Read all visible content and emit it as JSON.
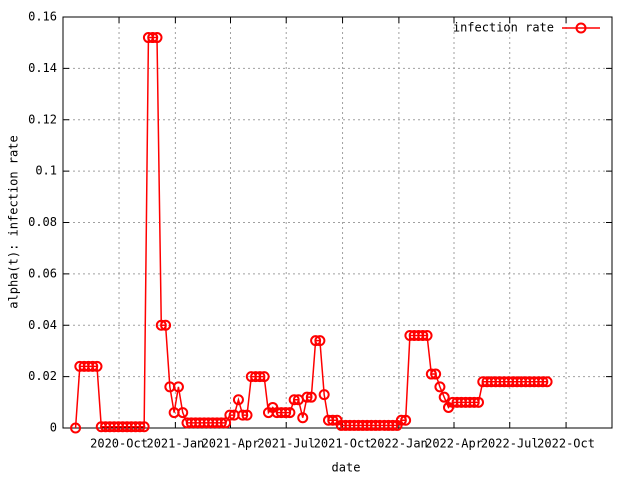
{
  "chart_data": {
    "type": "line",
    "xlabel": "date",
    "ylabel": "alpha(t): infection rate",
    "x": [
      203,
      210,
      217,
      224,
      231,
      238,
      245,
      252,
      259,
      266,
      273,
      280,
      287,
      294,
      301,
      308,
      315,
      322,
      329,
      336,
      343,
      350,
      357,
      364,
      371,
      378,
      385,
      392,
      399,
      406,
      413,
      420,
      427,
      434,
      441,
      448,
      455,
      462,
      469,
      476,
      483,
      490,
      497,
      504,
      511,
      518,
      525,
      532,
      539,
      546,
      553,
      560,
      567,
      574,
      581,
      588,
      595,
      602,
      609,
      616,
      623,
      630,
      637,
      644,
      651,
      658,
      665,
      672,
      679,
      686,
      693,
      700,
      707,
      714,
      721,
      728,
      735,
      742,
      749,
      756,
      763,
      770,
      777,
      784,
      791,
      798,
      805,
      812,
      819,
      826,
      833,
      840,
      847,
      854,
      861,
      868,
      875,
      882,
      889,
      896,
      903,
      910,
      917,
      924,
      931,
      938,
      945,
      952,
      959,
      966,
      973
    ],
    "series": [
      {
        "name": "infection rate",
        "color": "#ff0000",
        "values": [
          0,
          0.024,
          0.024,
          0.024,
          0.024,
          0.024,
          0.0005,
          0.0005,
          0.0005,
          0.0005,
          0.0005,
          0.0005,
          0.0005,
          0.0005,
          0.0005,
          0.0005,
          0.0005,
          0.152,
          0.152,
          0.152,
          0.04,
          0.04,
          0.016,
          0.006,
          0.016,
          0.006,
          0.002,
          0.002,
          0.002,
          0.002,
          0.002,
          0.002,
          0.002,
          0.002,
          0.002,
          0.002,
          0.005,
          0.005,
          0.011,
          0.005,
          0.005,
          0.02,
          0.02,
          0.02,
          0.02,
          0.006,
          0.008,
          0.006,
          0.006,
          0.006,
          0.006,
          0.011,
          0.011,
          0.004,
          0.012,
          0.012,
          0.034,
          0.034,
          0.013,
          0.003,
          0.003,
          0.003,
          0.001,
          0.001,
          0.001,
          0.001,
          0.001,
          0.001,
          0.001,
          0.001,
          0.001,
          0.001,
          0.001,
          0.001,
          0.001,
          0.001,
          0.003,
          0.003,
          0.036,
          0.036,
          0.036,
          0.036,
          0.036,
          0.021,
          0.021,
          0.016,
          0.012,
          0.008,
          0.01,
          0.01,
          0.01,
          0.01,
          0.01,
          0.01,
          0.01,
          0.018,
          0.018,
          0.018,
          0.018,
          0.018,
          0.018,
          0.018,
          0.018,
          0.018,
          0.018,
          0.018,
          0.018,
          0.018,
          0.018,
          0.018,
          0.018
        ]
      }
    ],
    "xlim": [
      182.5,
      1079
    ],
    "xticks": [
      {
        "value": 274,
        "label": "2020-Oct"
      },
      {
        "value": 366,
        "label": "2021-Jan"
      },
      {
        "value": 456,
        "label": "2021-Apr"
      },
      {
        "value": 547,
        "label": "2021-Jul"
      },
      {
        "value": 639,
        "label": "2021-Oct"
      },
      {
        "value": 731,
        "label": "2022-Jan"
      },
      {
        "value": 821,
        "label": "2022-Apr"
      },
      {
        "value": 912,
        "label": "2022-Jul"
      },
      {
        "value": 1004,
        "label": "2022-Oct"
      }
    ],
    "ylim": [
      0,
      0.16
    ],
    "yticks": [
      0,
      0.02,
      0.04,
      0.06,
      0.08,
      0.1,
      0.12,
      0.14,
      0.16
    ],
    "grid": true,
    "legend": "top-right",
    "marker": "circle"
  }
}
